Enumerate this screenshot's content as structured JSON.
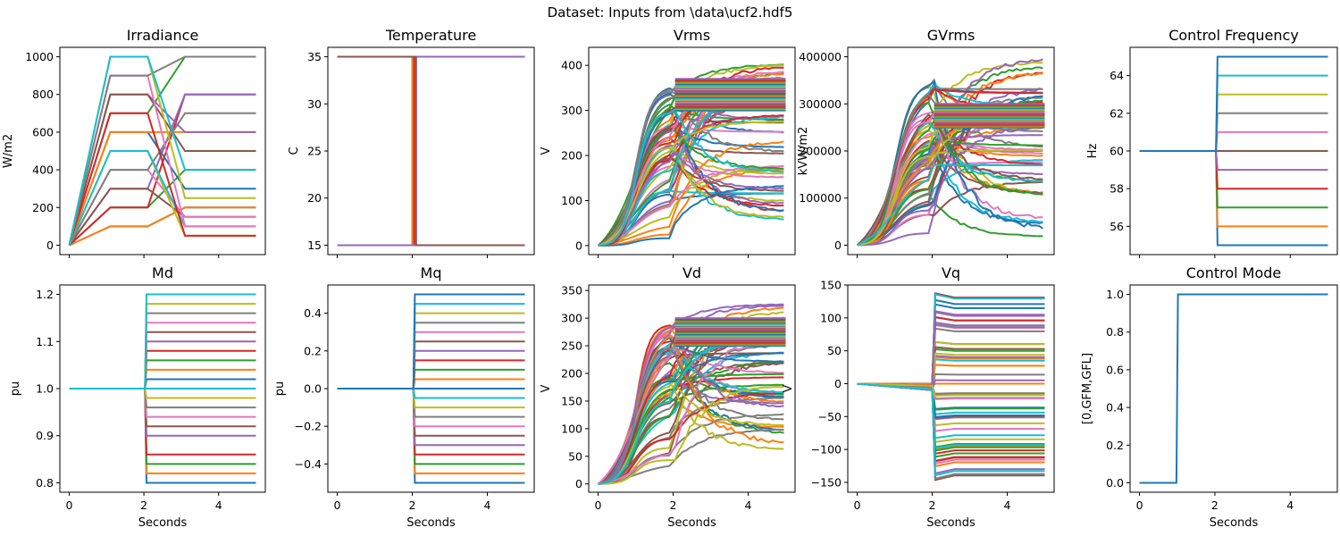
{
  "figure": {
    "suptitle": "Dataset: Inputs from \\data\\ucf2.hdf5",
    "palette": [
      "#1f77b4",
      "#ff7f0e",
      "#2ca02c",
      "#d62728",
      "#9467bd",
      "#8c564b",
      "#e377c2",
      "#7f7f7f",
      "#bcbd22",
      "#17becf"
    ]
  },
  "chart_data": [
    {
      "id": "irradiance",
      "type": "line",
      "title": "Irradiance",
      "xlabel": "",
      "ylabel": "W/m2",
      "xlim": [
        -0.25,
        5.25
      ],
      "ylim": [
        -50,
        1050
      ],
      "xticks": [
        0,
        2,
        4
      ],
      "xticklabels": [],
      "yticks": [
        0,
        200,
        400,
        600,
        800,
        1000
      ],
      "yticklabels": [
        "0",
        "200",
        "400",
        "600",
        "800",
        "1000"
      ],
      "grid": false,
      "pattern": "ramp",
      "ramp_end": 1.1,
      "change_at": 2.1,
      "settle_at": 3.1,
      "initial": 0,
      "levels": [
        100,
        200,
        300,
        400,
        500,
        600,
        700,
        800,
        900,
        1000
      ],
      "finals": [
        50,
        100,
        150,
        200,
        250,
        300,
        400,
        500,
        600,
        700,
        800,
        850,
        900,
        950,
        1000
      ]
    },
    {
      "id": "temperature",
      "type": "line",
      "title": "Temperature",
      "xlabel": "",
      "ylabel": "C",
      "xlim": [
        -0.25,
        5.25
      ],
      "ylim": [
        14,
        36
      ],
      "xticks": [
        0,
        2,
        4
      ],
      "xticklabels": [],
      "yticks": [
        15,
        20,
        25,
        30,
        35
      ],
      "yticklabels": [
        "15",
        "20",
        "25",
        "30",
        "35"
      ],
      "grid": false,
      "pattern": "step_switch",
      "levels": [
        15,
        35
      ],
      "switch_at": [
        2.0,
        2.05,
        2.1
      ]
    },
    {
      "id": "vrms",
      "type": "line",
      "title": "Vrms",
      "xlabel": "",
      "ylabel": "V",
      "xlim": [
        -0.25,
        5.25
      ],
      "ylim": [
        -20,
        440
      ],
      "xticks": [
        0,
        2,
        4
      ],
      "xticklabels": [],
      "yticks": [
        0,
        100,
        200,
        300,
        400
      ],
      "yticklabels": [
        "0",
        "100",
        "200",
        "300",
        "400"
      ],
      "grid": false,
      "pattern": "dynamic",
      "change_at": 2.0,
      "initial": 0,
      "pre_max": 355,
      "final_min": 55,
      "final_max": 405,
      "band": [
        300,
        370
      ]
    },
    {
      "id": "gvrms",
      "type": "line",
      "title": "GVrms",
      "xlabel": "",
      "ylabel": "kVW/m2",
      "xlim": [
        -0.25,
        5.25
      ],
      "ylim": [
        -20000,
        420000
      ],
      "xticks": [
        0,
        2,
        4
      ],
      "xticklabels": [],
      "yticks": [
        0,
        100000,
        200000,
        300000,
        400000
      ],
      "yticklabels": [
        "0",
        "100000",
        "200000",
        "300000",
        "400000"
      ],
      "grid": false,
      "pattern": "dynamic",
      "change_at": 2.0,
      "initial": 0,
      "pre_max": 350000,
      "final_min": 5000,
      "final_max": 405000,
      "band": [
        250000,
        300000
      ]
    },
    {
      "id": "control_frequency",
      "type": "line",
      "title": "Control Frequency",
      "xlabel": "",
      "ylabel": "Hz",
      "xlim": [
        -0.25,
        5.25
      ],
      "ylim": [
        54.5,
        65.5
      ],
      "xticks": [
        0,
        2,
        4
      ],
      "xticklabels": [],
      "yticks": [
        56,
        58,
        60,
        62,
        64
      ],
      "yticklabels": [
        "56",
        "58",
        "60",
        "62",
        "64"
      ],
      "grid": false,
      "pattern": "step",
      "change_at": 2.05,
      "initial": 60,
      "finals": [
        55,
        56,
        57,
        58,
        59,
        60,
        61,
        62,
        63,
        64,
        65
      ]
    },
    {
      "id": "md",
      "type": "line",
      "title": "Md",
      "xlabel": "Seconds",
      "ylabel": "pu",
      "xlim": [
        -0.25,
        5.25
      ],
      "ylim": [
        0.78,
        1.22
      ],
      "xticks": [
        0,
        2,
        4
      ],
      "xticklabels": [
        "0",
        "2",
        "4"
      ],
      "yticks": [
        0.8,
        0.9,
        1.0,
        1.1,
        1.2
      ],
      "yticklabels": [
        "0.8",
        "0.9",
        "1.0",
        "1.1",
        "1.2"
      ],
      "grid": false,
      "pattern": "step",
      "change_at": 2.05,
      "initial": 1.0,
      "finals": [
        0.8,
        0.82,
        0.84,
        0.86,
        0.9,
        0.92,
        0.94,
        0.96,
        0.98,
        1.0,
        1.02,
        1.04,
        1.06,
        1.08,
        1.1,
        1.12,
        1.14,
        1.16,
        1.18,
        1.2
      ]
    },
    {
      "id": "mq",
      "type": "line",
      "title": "Mq",
      "xlabel": "Seconds",
      "ylabel": "pu",
      "xlim": [
        -0.25,
        5.25
      ],
      "ylim": [
        -0.55,
        0.55
      ],
      "xticks": [
        0,
        2,
        4
      ],
      "xticklabels": [
        "0",
        "2",
        "4"
      ],
      "yticks": [
        -0.4,
        -0.2,
        0.0,
        0.2,
        0.4
      ],
      "yticklabels": [
        "−0.4",
        "−0.2",
        "0.0",
        "0.2",
        "0.4"
      ],
      "grid": false,
      "pattern": "step",
      "change_at": 2.05,
      "initial": 0.0,
      "finals": [
        -0.5,
        -0.45,
        -0.4,
        -0.35,
        -0.3,
        -0.25,
        -0.2,
        -0.15,
        -0.1,
        -0.05,
        0.0,
        0.05,
        0.1,
        0.15,
        0.2,
        0.25,
        0.3,
        0.35,
        0.4,
        0.45,
        0.5
      ]
    },
    {
      "id": "vd",
      "type": "line",
      "title": "Vd",
      "xlabel": "Seconds",
      "ylabel": "V",
      "xlim": [
        -0.25,
        5.25
      ],
      "ylim": [
        -15,
        360
      ],
      "xticks": [
        0,
        2,
        4
      ],
      "xticklabels": [
        "0",
        "2",
        "4"
      ],
      "yticks": [
        0,
        50,
        100,
        150,
        200,
        250,
        300,
        350
      ],
      "yticklabels": [
        "0",
        "50",
        "100",
        "150",
        "200",
        "250",
        "300",
        "350"
      ],
      "grid": false,
      "pattern": "dynamic",
      "change_at": 2.0,
      "initial": 0,
      "pre_max": 290,
      "final_min": 45,
      "final_max": 330,
      "band": [
        250,
        300
      ]
    },
    {
      "id": "vq",
      "type": "line",
      "title": "Vq",
      "xlabel": "Seconds",
      "ylabel": "V",
      "xlim": [
        -0.25,
        5.25
      ],
      "ylim": [
        -165,
        150
      ],
      "xticks": [
        0,
        2,
        4
      ],
      "xticklabels": [
        "0",
        "2",
        "4"
      ],
      "yticks": [
        -150,
        -100,
        -50,
        0,
        50,
        100,
        150
      ],
      "yticklabels": [
        "−150",
        "−100",
        "−50",
        "0",
        "50",
        "100",
        "150"
      ],
      "grid": false,
      "pattern": "spread",
      "change_at": 2.0,
      "initial": 0,
      "pre_min": -10,
      "final_min": -150,
      "final_max": 135
    },
    {
      "id": "control_mode",
      "type": "line",
      "title": "Control Mode",
      "xlabel": "Seconds",
      "ylabel": "[0,GFM,GFL]",
      "xlim": [
        -0.25,
        5.25
      ],
      "ylim": [
        -0.05,
        1.05
      ],
      "xticks": [
        0,
        2,
        4
      ],
      "xticklabels": [
        "0",
        "2",
        "4"
      ],
      "yticks": [
        0.0,
        0.2,
        0.4,
        0.6,
        0.8,
        1.0
      ],
      "yticklabels": [
        "0.0",
        "0.2",
        "0.4",
        "0.6",
        "0.8",
        "1.0"
      ],
      "grid": false,
      "pattern": "step",
      "change_at": 1.0,
      "initial": 0,
      "finals": [
        1
      ]
    }
  ]
}
